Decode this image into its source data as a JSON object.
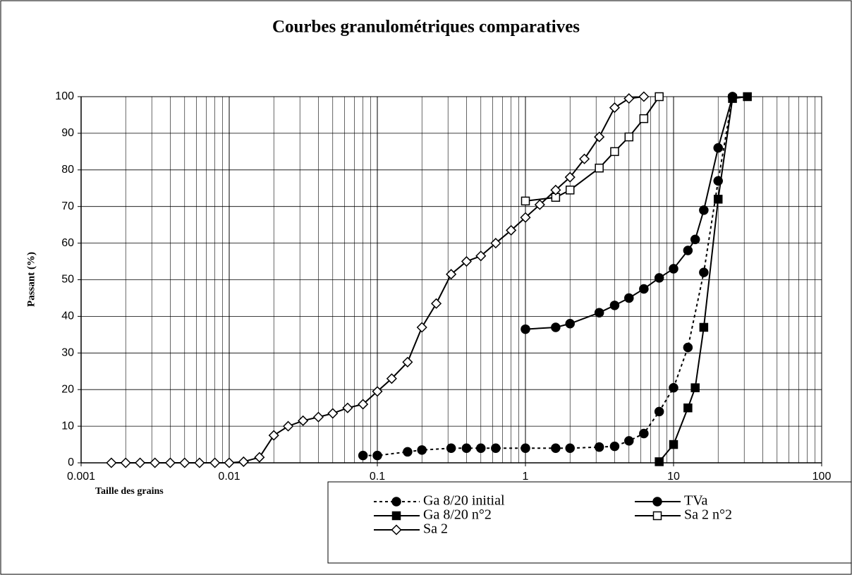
{
  "chart_data": {
    "type": "line",
    "title": "Courbes granulométriques comparatives",
    "x_label": "Taille des grains",
    "y_label": "Passant (%)",
    "xscale": "log",
    "xlim": [
      0.001,
      100
    ],
    "xticks": [
      0.001,
      0.01,
      0.1,
      1,
      10,
      100
    ],
    "ylim": [
      0,
      100
    ],
    "yticks": [
      0,
      10,
      20,
      30,
      40,
      50,
      60,
      70,
      80,
      90,
      100
    ],
    "grid": true,
    "minor_grid": true,
    "legend": "bottom",
    "series": [
      {
        "name": "Ga 8/20 initial",
        "color": "#000000",
        "line_style": "dashed",
        "marker": "circle",
        "marker_fill": "filled",
        "x": [
          0.08,
          0.1,
          0.16,
          0.2,
          0.315,
          0.4,
          0.5,
          0.63,
          1,
          1.6,
          2,
          3.15,
          4,
          5,
          6.3,
          8,
          10,
          12.5,
          16,
          20,
          25
        ],
        "values": [
          2,
          2,
          3,
          3.5,
          4,
          4,
          4,
          4,
          4,
          4,
          4,
          4.3,
          4.5,
          6,
          8,
          14,
          20.5,
          31.5,
          52,
          77,
          100
        ]
      },
      {
        "name": "TVa",
        "color": "#000000",
        "line_style": "solid",
        "marker": "circle",
        "marker_fill": "filled",
        "x": [
          1,
          1.6,
          2,
          3.15,
          4,
          5,
          6.3,
          8,
          10,
          12.5,
          14,
          16,
          20,
          25
        ],
        "values": [
          36.5,
          37,
          38,
          41,
          43,
          45,
          47.5,
          50.5,
          53,
          58,
          61,
          69,
          86,
          100
        ]
      },
      {
        "name": "Ga 8/20 n°2",
        "color": "#000000",
        "line_style": "solid",
        "marker": "square",
        "marker_fill": "filled",
        "x": [
          8,
          10,
          12.5,
          14,
          16,
          20,
          25,
          31.5
        ],
        "values": [
          0.3,
          5,
          15,
          20.5,
          37,
          72,
          99.5,
          100
        ]
      },
      {
        "name": "Sa 2 n°2",
        "color": "#000000",
        "line_style": "solid",
        "marker": "square",
        "marker_fill": "open",
        "x": [
          1,
          1.6,
          2,
          3.15,
          4,
          5,
          6.3,
          8
        ],
        "values": [
          71.5,
          72.5,
          74.5,
          80.5,
          85,
          89,
          94,
          100
        ]
      },
      {
        "name": "Sa 2",
        "color": "#000000",
        "line_style": "solid",
        "marker": "diamond",
        "marker_fill": "open",
        "x": [
          0.0016,
          0.002,
          0.0025,
          0.00315,
          0.004,
          0.005,
          0.0063,
          0.008,
          0.01,
          0.0125,
          0.016,
          0.02,
          0.025,
          0.0315,
          0.04,
          0.05,
          0.063,
          0.08,
          0.1,
          0.125,
          0.16,
          0.2,
          0.25,
          0.315,
          0.4,
          0.5,
          0.63,
          0.8,
          1,
          1.25,
          1.6,
          2,
          2.5,
          3.15,
          4,
          5,
          6.3
        ],
        "values": [
          0,
          0,
          0,
          0,
          0,
          0,
          0,
          0,
          0,
          0.3,
          1.5,
          7.5,
          10,
          11.5,
          12.5,
          13.5,
          15,
          16,
          19.5,
          23,
          27.5,
          37,
          43.5,
          51.5,
          55,
          56.5,
          60,
          63.5,
          67,
          70.5,
          74.5,
          78,
          83,
          89,
          97,
          99.5,
          100
        ]
      }
    ]
  }
}
